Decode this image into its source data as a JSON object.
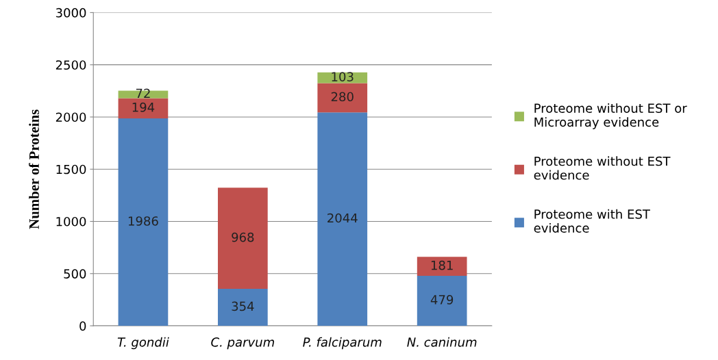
{
  "chart_data": {
    "type": "bar",
    "stacked": true,
    "ylabel": "Number of Proteins",
    "categories": [
      "T. gondii",
      "C. parvum",
      "P. falciparum",
      "N. caninum"
    ],
    "series": [
      {
        "name": "Proteome with EST evidence",
        "color": "#4f81bd",
        "values": [
          1986,
          354,
          2044,
          479
        ]
      },
      {
        "name": "Proteome without EST evidence",
        "color": "#c0504d",
        "values": [
          194,
          968,
          280,
          181
        ]
      },
      {
        "name": "Proteome without EST or Microarray evidence",
        "color": "#9bbb59",
        "values": [
          72,
          null,
          103,
          null
        ]
      }
    ],
    "ylim": [
      0,
      3000
    ],
    "yticks": [
      0,
      500,
      1000,
      1500,
      2000,
      2500,
      3000
    ],
    "grid": "y",
    "legend": "right",
    "data_labels": true
  }
}
